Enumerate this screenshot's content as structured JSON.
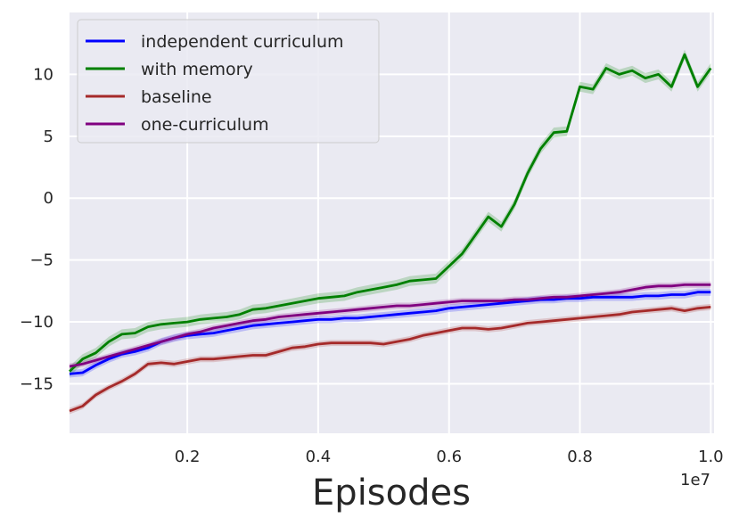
{
  "chart_data": {
    "type": "line",
    "xlabel": "Episodes",
    "x_offset_label": "1e7",
    "xlim": [
      0.02,
      1.005
    ],
    "ylim": [
      -19,
      15
    ],
    "xticks": [
      0.2,
      0.4,
      0.6,
      0.8,
      1.0
    ],
    "xtick_labels": [
      "0.2",
      "0.4",
      "0.6",
      "0.8",
      "1.0"
    ],
    "yticks": [
      -15,
      -10,
      -5,
      0,
      5,
      10
    ],
    "ytick_labels": [
      "−15",
      "−10",
      "−5",
      "0",
      "5",
      "10"
    ],
    "grid": true,
    "legend_position": "top-left",
    "background": "#eaeaf2",
    "series": [
      {
        "name": "independent curriculum",
        "color": "#0000ff",
        "band": 0.3,
        "x": [
          0.02,
          0.04,
          0.06,
          0.08,
          0.1,
          0.12,
          0.14,
          0.16,
          0.18,
          0.2,
          0.22,
          0.24,
          0.26,
          0.28,
          0.3,
          0.32,
          0.34,
          0.36,
          0.38,
          0.4,
          0.42,
          0.44,
          0.46,
          0.48,
          0.5,
          0.52,
          0.54,
          0.56,
          0.58,
          0.6,
          0.62,
          0.64,
          0.66,
          0.68,
          0.7,
          0.72,
          0.74,
          0.76,
          0.78,
          0.8,
          0.82,
          0.84,
          0.86,
          0.88,
          0.9,
          0.92,
          0.94,
          0.96,
          0.98,
          1.0
        ],
        "y": [
          -14.2,
          -14.1,
          -13.5,
          -13.0,
          -12.6,
          -12.4,
          -12.1,
          -11.6,
          -11.3,
          -11.1,
          -11.0,
          -10.9,
          -10.7,
          -10.5,
          -10.3,
          -10.2,
          -10.1,
          -10.0,
          -9.9,
          -9.8,
          -9.8,
          -9.7,
          -9.7,
          -9.6,
          -9.5,
          -9.4,
          -9.3,
          -9.2,
          -9.1,
          -8.9,
          -8.8,
          -8.7,
          -8.6,
          -8.5,
          -8.4,
          -8.3,
          -8.2,
          -8.2,
          -8.1,
          -8.1,
          -8.0,
          -8.0,
          -8.0,
          -8.0,
          -7.9,
          -7.9,
          -7.8,
          -7.8,
          -7.6,
          -7.6
        ]
      },
      {
        "name": "with memory",
        "color": "#008000",
        "band": 0.4,
        "x": [
          0.02,
          0.04,
          0.06,
          0.08,
          0.1,
          0.12,
          0.14,
          0.16,
          0.18,
          0.2,
          0.22,
          0.24,
          0.26,
          0.28,
          0.3,
          0.32,
          0.34,
          0.36,
          0.38,
          0.4,
          0.42,
          0.44,
          0.46,
          0.48,
          0.5,
          0.52,
          0.54,
          0.56,
          0.58,
          0.6,
          0.62,
          0.64,
          0.66,
          0.68,
          0.7,
          0.72,
          0.74,
          0.76,
          0.78,
          0.8,
          0.82,
          0.84,
          0.86,
          0.88,
          0.9,
          0.92,
          0.94,
          0.96,
          0.98,
          1.0
        ],
        "y": [
          -14.0,
          -13.0,
          -12.5,
          -11.6,
          -11.0,
          -10.9,
          -10.4,
          -10.2,
          -10.1,
          -10.0,
          -9.8,
          -9.7,
          -9.6,
          -9.4,
          -9.0,
          -8.9,
          -8.7,
          -8.5,
          -8.3,
          -8.1,
          -8.0,
          -7.9,
          -7.6,
          -7.4,
          -7.2,
          -7.0,
          -6.7,
          -6.6,
          -6.5,
          -5.5,
          -4.5,
          -3.0,
          -1.5,
          -2.3,
          -0.5,
          2.0,
          4.0,
          5.3,
          5.4,
          9.0,
          8.8,
          10.5,
          10.0,
          10.3,
          9.7,
          10.0,
          9.0,
          11.6,
          9.0,
          10.5
        ]
      },
      {
        "name": "baseline",
        "color": "#a52a2a",
        "band": 0.25,
        "x": [
          0.02,
          0.04,
          0.06,
          0.08,
          0.1,
          0.12,
          0.14,
          0.16,
          0.18,
          0.2,
          0.22,
          0.24,
          0.26,
          0.28,
          0.3,
          0.32,
          0.34,
          0.36,
          0.38,
          0.4,
          0.42,
          0.44,
          0.46,
          0.48,
          0.5,
          0.52,
          0.54,
          0.56,
          0.58,
          0.6,
          0.62,
          0.64,
          0.66,
          0.68,
          0.7,
          0.72,
          0.74,
          0.76,
          0.78,
          0.8,
          0.82,
          0.84,
          0.86,
          0.88,
          0.9,
          0.92,
          0.94,
          0.96,
          0.98,
          1.0
        ],
        "y": [
          -17.2,
          -16.8,
          -15.9,
          -15.3,
          -14.8,
          -14.2,
          -13.4,
          -13.3,
          -13.4,
          -13.2,
          -13.0,
          -13.0,
          -12.9,
          -12.8,
          -12.7,
          -12.7,
          -12.4,
          -12.1,
          -12.0,
          -11.8,
          -11.7,
          -11.7,
          -11.7,
          -11.7,
          -11.8,
          -11.6,
          -11.4,
          -11.1,
          -10.9,
          -10.7,
          -10.5,
          -10.5,
          -10.6,
          -10.5,
          -10.3,
          -10.1,
          -10.0,
          -9.9,
          -9.8,
          -9.7,
          -9.6,
          -9.5,
          -9.4,
          -9.2,
          -9.1,
          -9.0,
          -8.9,
          -9.1,
          -8.9,
          -8.8
        ]
      },
      {
        "name": "one-curriculum",
        "color": "#800080",
        "band": 0.25,
        "x": [
          0.02,
          0.04,
          0.06,
          0.08,
          0.1,
          0.12,
          0.14,
          0.16,
          0.18,
          0.2,
          0.22,
          0.24,
          0.26,
          0.28,
          0.3,
          0.32,
          0.34,
          0.36,
          0.38,
          0.4,
          0.42,
          0.44,
          0.46,
          0.48,
          0.5,
          0.52,
          0.54,
          0.56,
          0.58,
          0.6,
          0.62,
          0.64,
          0.66,
          0.68,
          0.7,
          0.72,
          0.74,
          0.76,
          0.78,
          0.8,
          0.82,
          0.84,
          0.86,
          0.88,
          0.9,
          0.92,
          0.94,
          0.96,
          0.98,
          1.0
        ],
        "y": [
          -13.6,
          -13.4,
          -13.1,
          -12.8,
          -12.5,
          -12.2,
          -11.9,
          -11.6,
          -11.3,
          -11.0,
          -10.8,
          -10.5,
          -10.3,
          -10.1,
          -9.9,
          -9.8,
          -9.6,
          -9.5,
          -9.4,
          -9.3,
          -9.2,
          -9.1,
          -9.0,
          -8.9,
          -8.8,
          -8.7,
          -8.7,
          -8.6,
          -8.5,
          -8.4,
          -8.3,
          -8.3,
          -8.3,
          -8.3,
          -8.2,
          -8.2,
          -8.1,
          -8.0,
          -8.0,
          -7.9,
          -7.8,
          -7.7,
          -7.6,
          -7.4,
          -7.2,
          -7.1,
          -7.1,
          -7.0,
          -7.0,
          -7.0
        ]
      }
    ]
  }
}
